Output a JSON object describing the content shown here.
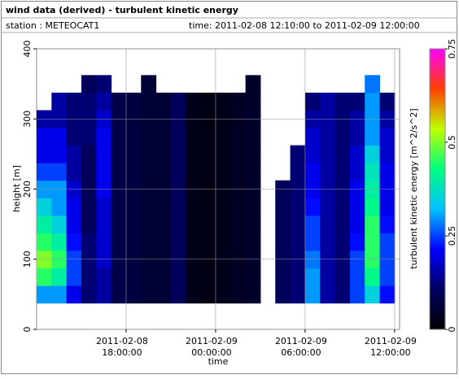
{
  "chart_data": {
    "type": "heatmap",
    "title": "wind data (derived) - turbulent kinetic energy",
    "station": "station : METEOCAT1",
    "time_range": "time: 2011-02-08 12:10:00 to 2011-02-09 12:00:00",
    "x_label": "time",
    "y_label": "height [m]",
    "colorbar_label": "turbulent kinetic energy [m^2/s^2]",
    "x": [
      "2011-02-08 12:30",
      "2011-02-08 13:30",
      "2011-02-08 14:30",
      "2011-02-08 15:30",
      "2011-02-08 16:30",
      "2011-02-08 17:30",
      "2011-02-08 18:30",
      "2011-02-08 19:30",
      "2011-02-08 20:30",
      "2011-02-08 21:30",
      "2011-02-08 22:30",
      "2011-02-08 23:30",
      "2011-02-09 00:30",
      "2011-02-09 01:30",
      "2011-02-09 02:30",
      "2011-02-09 03:30",
      "2011-02-09 04:30",
      "2011-02-09 05:30",
      "2011-02-09 06:30",
      "2011-02-09 07:30",
      "2011-02-09 08:30",
      "2011-02-09 09:30",
      "2011-02-09 10:30",
      "2011-02-09 11:30"
    ],
    "y": [
      50,
      75,
      100,
      125,
      150,
      175,
      200,
      225,
      250,
      275,
      300,
      325,
      350
    ],
    "values": [
      [
        0.3,
        0.3,
        0.2,
        0.12,
        0.15,
        0.08,
        0.07,
        0.06,
        0.06,
        0.1,
        0.03,
        0.02,
        0.03,
        0.04,
        0.05,
        null,
        0.1,
        0.12,
        0.3,
        0.15,
        0.12,
        0.25,
        0.35,
        0.22
      ],
      [
        0.45,
        0.4,
        0.25,
        0.12,
        0.15,
        0.08,
        0.07,
        0.06,
        0.06,
        0.1,
        0.03,
        0.02,
        0.03,
        0.04,
        0.05,
        null,
        0.1,
        0.12,
        0.3,
        0.15,
        0.12,
        0.25,
        0.42,
        0.25
      ],
      [
        0.5,
        0.45,
        0.25,
        0.12,
        0.18,
        0.08,
        0.07,
        0.06,
        0.06,
        0.1,
        0.03,
        0.02,
        0.03,
        0.04,
        0.05,
        null,
        0.1,
        0.12,
        0.28,
        0.15,
        0.12,
        0.25,
        0.45,
        0.25
      ],
      [
        0.45,
        0.4,
        0.22,
        0.12,
        0.18,
        0.08,
        0.07,
        0.06,
        0.06,
        0.1,
        0.03,
        0.02,
        0.03,
        0.04,
        0.05,
        null,
        0.1,
        0.12,
        0.25,
        0.15,
        0.12,
        0.22,
        0.45,
        0.25
      ],
      [
        0.4,
        0.35,
        0.2,
        0.1,
        0.18,
        0.08,
        0.07,
        0.06,
        0.06,
        0.1,
        0.03,
        0.02,
        0.03,
        0.04,
        0.05,
        null,
        0.1,
        0.12,
        0.25,
        0.15,
        0.12,
        0.2,
        0.45,
        0.22
      ],
      [
        0.35,
        0.3,
        0.2,
        0.1,
        0.18,
        0.08,
        0.07,
        0.06,
        0.06,
        0.1,
        0.03,
        0.02,
        0.03,
        0.04,
        0.05,
        null,
        0.1,
        0.12,
        0.22,
        0.15,
        0.12,
        0.2,
        0.42,
        0.2
      ],
      [
        0.3,
        0.3,
        0.18,
        0.1,
        0.2,
        0.08,
        0.07,
        0.06,
        0.06,
        0.1,
        0.03,
        0.02,
        0.03,
        0.04,
        0.05,
        null,
        0.1,
        0.12,
        0.2,
        0.15,
        0.12,
        0.2,
        0.4,
        0.2
      ],
      [
        0.25,
        0.25,
        0.15,
        0.1,
        0.2,
        0.08,
        0.07,
        0.06,
        0.06,
        0.1,
        0.03,
        0.02,
        0.03,
        0.04,
        0.05,
        null,
        null,
        0.12,
        0.2,
        0.15,
        0.12,
        0.18,
        0.38,
        0.2
      ],
      [
        0.2,
        0.2,
        0.15,
        0.1,
        0.2,
        0.08,
        0.07,
        0.06,
        0.06,
        0.1,
        0.03,
        0.02,
        0.03,
        0.04,
        0.05,
        null,
        null,
        0.12,
        0.18,
        0.15,
        0.12,
        0.18,
        0.35,
        0.18
      ],
      [
        0.2,
        0.2,
        0.12,
        0.12,
        0.2,
        0.08,
        0.07,
        0.06,
        0.06,
        0.1,
        0.03,
        0.02,
        0.03,
        0.04,
        0.05,
        null,
        null,
        null,
        0.18,
        0.15,
        0.12,
        0.15,
        0.3,
        0.18
      ],
      [
        0.15,
        0.15,
        0.12,
        0.12,
        0.18,
        0.08,
        0.07,
        0.06,
        0.06,
        0.1,
        0.03,
        0.02,
        0.03,
        0.04,
        0.05,
        null,
        null,
        null,
        0.15,
        0.15,
        0.12,
        0.15,
        0.3,
        0.15
      ],
      [
        null,
        0.15,
        0.12,
        0.12,
        0.15,
        0.08,
        0.07,
        0.06,
        0.06,
        0.1,
        0.03,
        0.02,
        0.03,
        0.04,
        0.05,
        null,
        null,
        null,
        0.12,
        0.15,
        0.12,
        0.12,
        0.3,
        0.12
      ],
      [
        null,
        null,
        null,
        0.1,
        0.12,
        null,
        null,
        0.06,
        null,
        null,
        null,
        null,
        null,
        null,
        0.05,
        null,
        null,
        null,
        null,
        null,
        null,
        null,
        0.28,
        null
      ]
    ],
    "xlim": [
      "2011-02-08 12:00",
      "2011-02-09 12:20"
    ],
    "xticks": [
      {
        "value": "2011-02-08 18:00",
        "label": [
          "2011-02-08",
          "18:00:00"
        ]
      },
      {
        "value": "2011-02-09 00:00",
        "label": [
          "2011-02-09",
          "00:00:00"
        ]
      },
      {
        "value": "2011-02-09 06:00",
        "label": [
          "2011-02-09",
          "06:00:00"
        ]
      },
      {
        "value": "2011-02-09 12:00",
        "label": [
          "2011-02-09",
          "12:00:00"
        ]
      }
    ],
    "ylim": [
      0,
      400
    ],
    "yticks": [
      0,
      100,
      200,
      300,
      400
    ],
    "clim": [
      0,
      0.75
    ],
    "cticks": [
      0,
      0.25,
      0.5,
      0.75
    ],
    "colormap": [
      "#000000",
      "#000060",
      "#0000ff",
      "#00c0ff",
      "#00ff80",
      "#c0ff00",
      "#ff4000",
      "#ff00ff"
    ],
    "grid": true
  }
}
